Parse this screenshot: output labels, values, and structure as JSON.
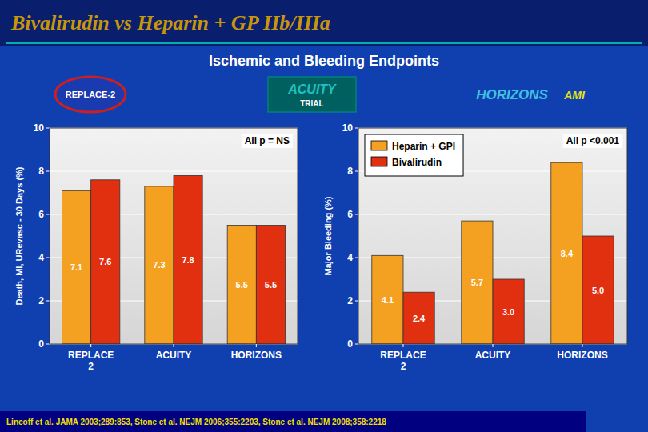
{
  "title": "Bivalirudin vs Heparin + GP IIb/IIIa",
  "subtitle": "Ischemic and Bleeding Endpoints",
  "annotations": [
    "REPLACE-2",
    "ACUITY",
    "TRIAL",
    "HORIZONS",
    "AMI",
    "Lincoff et al.  JAMA 2003;289:853,  Stone et al.  NEJM 2006;355:2203,  Stone et al.  NEJM 2008;358:2218"
  ],
  "chart_data": [
    {
      "type": "bar",
      "categories": [
        "REPLACE\n2",
        "ACUITY",
        "HORIZONS"
      ],
      "series": [
        {
          "color": "#f4a020",
          "values": [
            7.1,
            7.3,
            5.5
          ]
        },
        {
          "color": "#e03010",
          "values": [
            7.6,
            7.8,
            5.5
          ]
        }
      ],
      "ylabel": "Death, MI, URevasc - 30 Days (%)",
      "annotations": [
        "All p = NS"
      ],
      "ylim": [
        0,
        10
      ],
      "yticks": [
        0,
        2,
        4,
        6,
        8,
        10
      ],
      "grid": true,
      "data_labels": true
    },
    {
      "type": "bar",
      "categories": [
        "REPLACE\n2",
        "ACUITY",
        "HORIZONS"
      ],
      "series": [
        {
          "name": "Heparin + GPI",
          "color": "#f4a020",
          "values": [
            4.1,
            5.7,
            8.4
          ]
        },
        {
          "name": "Bivalirudin",
          "color": "#e03010",
          "values": [
            2.4,
            3.0,
            5.0
          ],
          "value_labels": [
            "2.4",
            "3.0",
            "5.0"
          ]
        }
      ],
      "ylabel": "Major Bleeding (%)",
      "annotations": [
        "All p <0.001"
      ],
      "ylim": [
        0,
        10
      ],
      "yticks": [
        0,
        2,
        4,
        6,
        8,
        10
      ],
      "grid": true,
      "legend": "upper left",
      "data_labels": true
    }
  ]
}
